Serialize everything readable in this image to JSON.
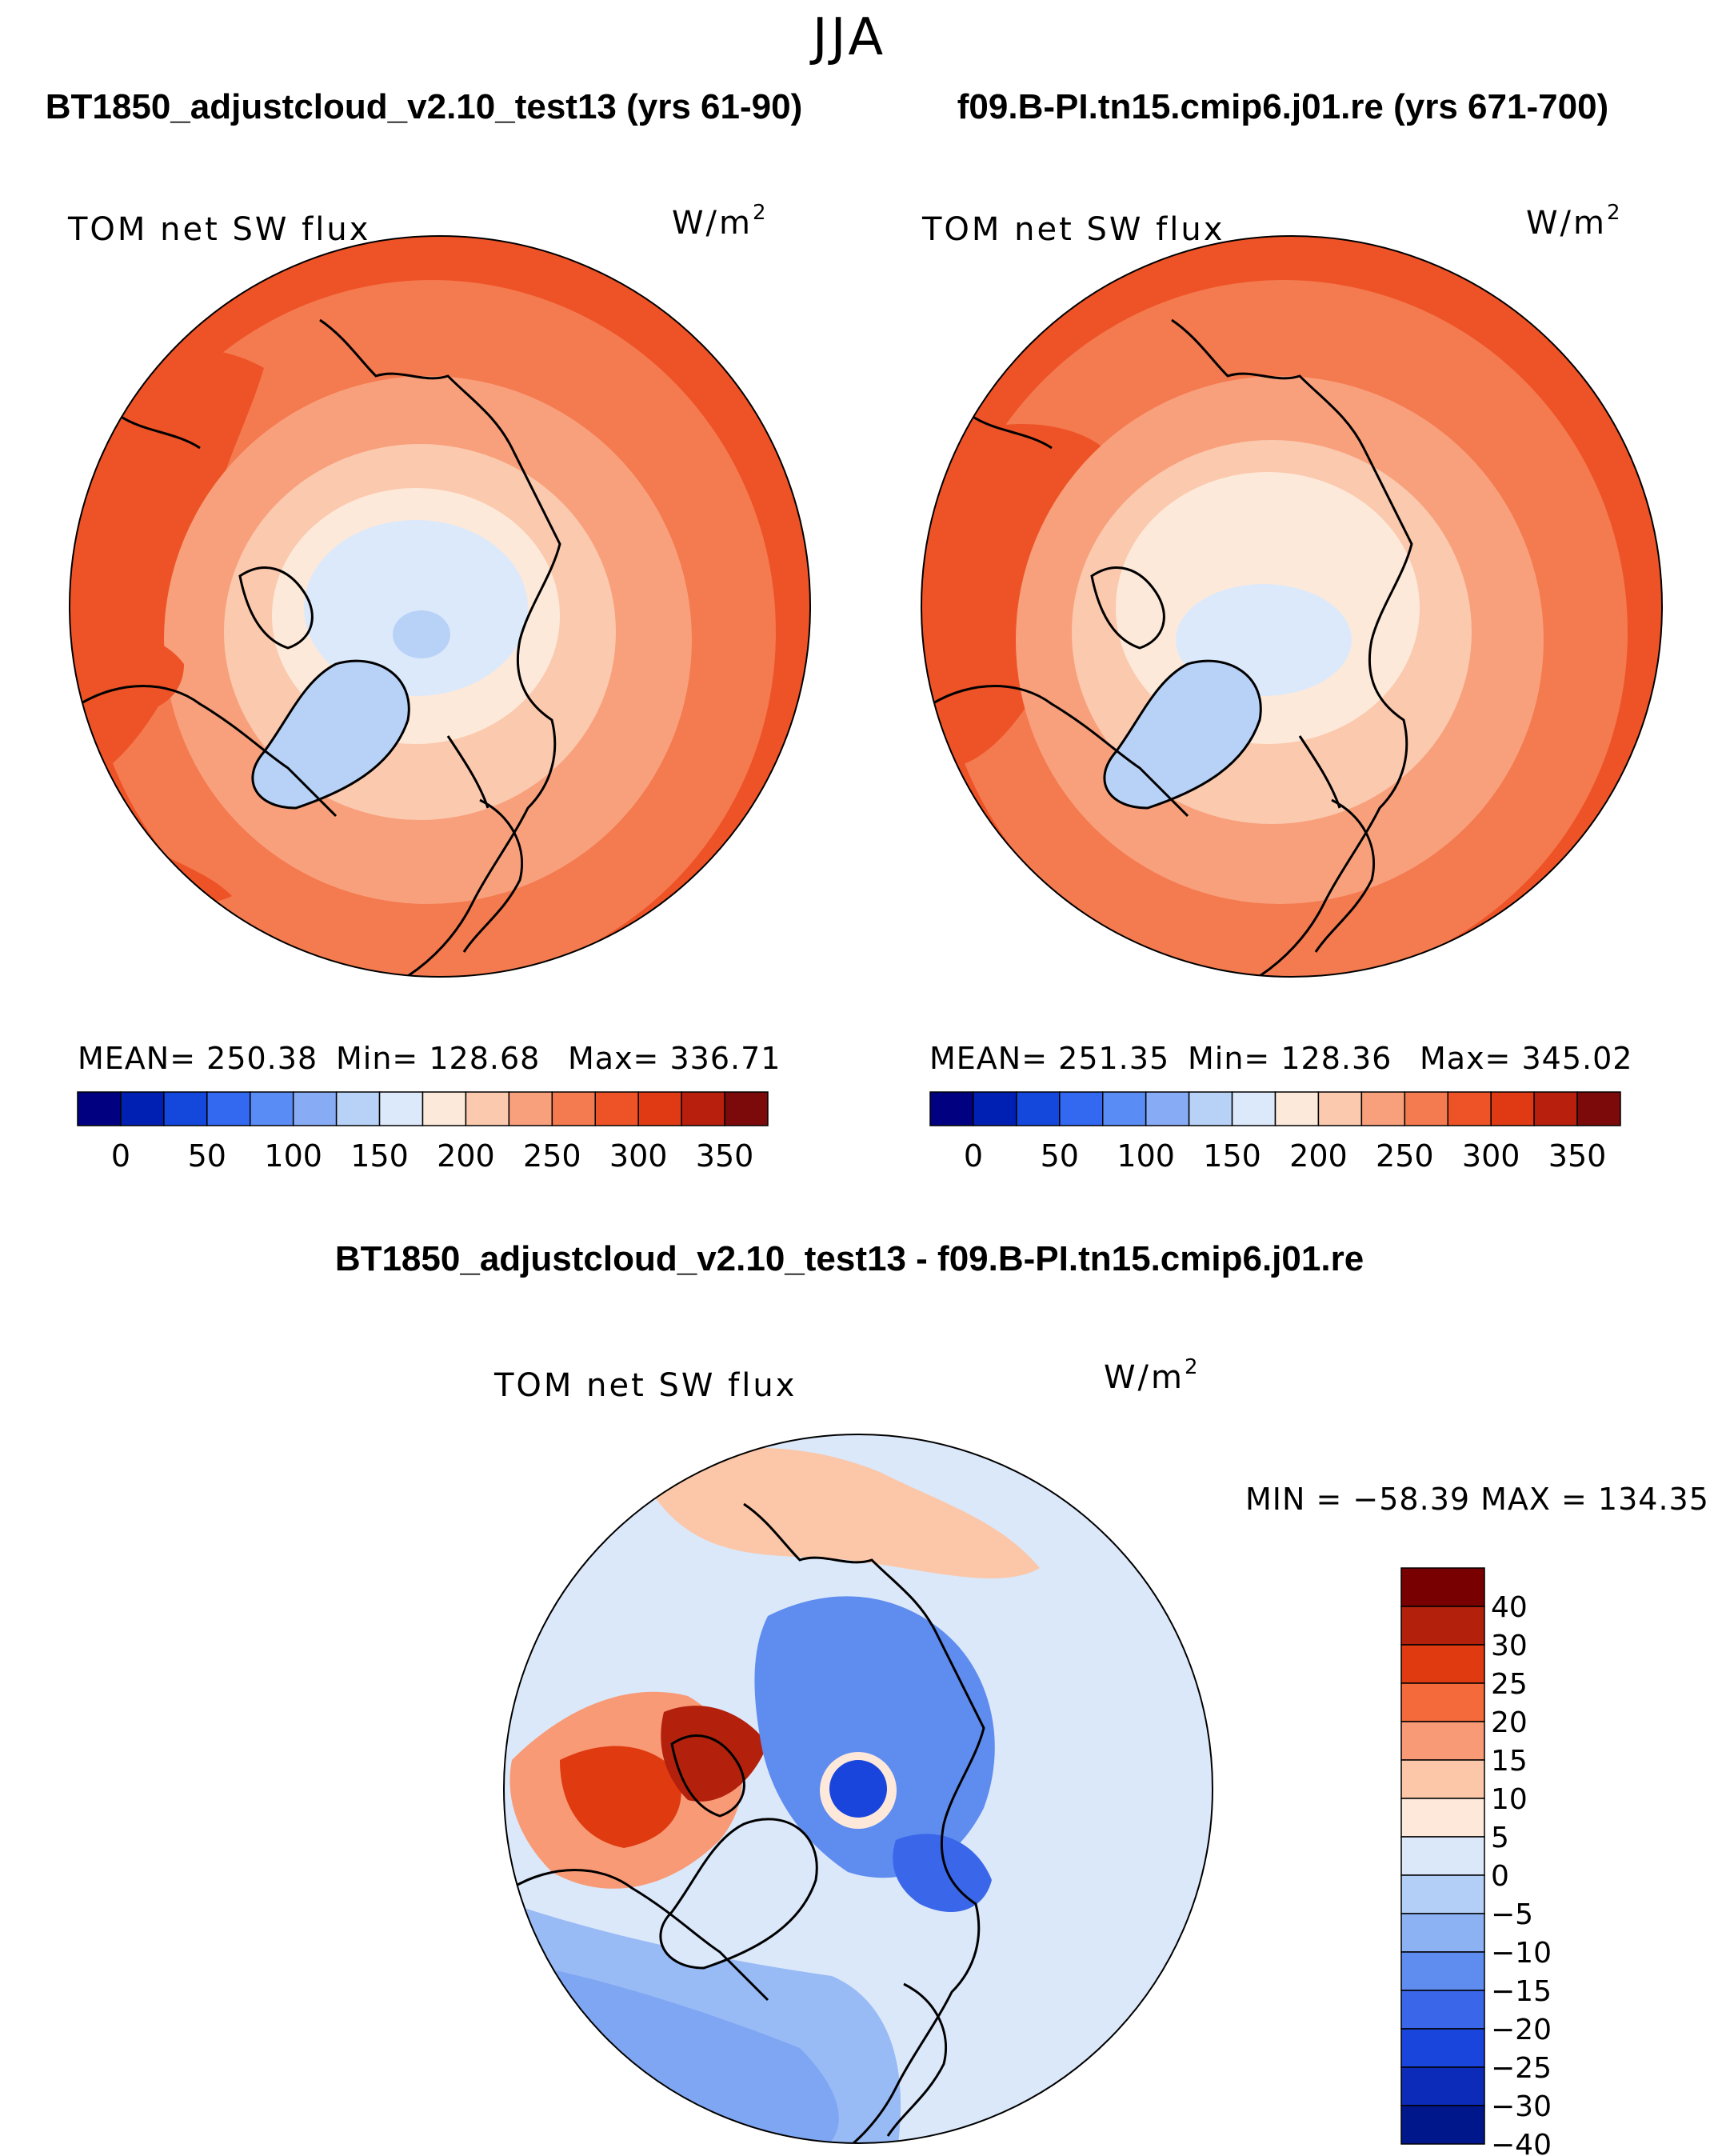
{
  "figure": {
    "season": "JJA"
  },
  "chart_data": [
    {
      "type": "heatmap",
      "panel": "left-top",
      "title": "BT1850_adjustcloud_v2.10_test13 (yrs 61-90)",
      "subtitle": "TOM net SW flux",
      "units": "W/m",
      "units_exp": "2",
      "projection": "north polar stereographic",
      "stats": {
        "mean_label": "MEAN=",
        "mean": "250.38",
        "min_label": "Min=",
        "min": "128.68",
        "max_label": "Max=",
        "max": "336.71"
      },
      "colorbar": {
        "orientation": "horizontal",
        "colors": [
          "#000080",
          "#0020b4",
          "#1447dc",
          "#3368f0",
          "#5a8cf5",
          "#87acf5",
          "#b8d2f7",
          "#dce9fb",
          "#fde9d9",
          "#fbc9ae",
          "#f8a07c",
          "#f47a4f",
          "#ee5327",
          "#df3a14",
          "#b8200d",
          "#7d0a0a"
        ],
        "tick_labels": [
          "0",
          "50",
          "100",
          "150",
          "200",
          "250",
          "300",
          "350"
        ]
      }
    },
    {
      "type": "heatmap",
      "panel": "right-top",
      "title": "f09.B-PI.tn15.cmip6.j01.re (yrs 671-700)",
      "subtitle": "TOM net SW flux",
      "units": "W/m",
      "units_exp": "2",
      "projection": "north polar stereographic",
      "stats": {
        "mean_label": "MEAN=",
        "mean": "251.35",
        "min_label": "Min=",
        "min": "128.36",
        "max_label": "Max=",
        "max": "345.02"
      },
      "colorbar": {
        "orientation": "horizontal",
        "colors": [
          "#000080",
          "#0020b4",
          "#1447dc",
          "#3368f0",
          "#5a8cf5",
          "#87acf5",
          "#b8d2f7",
          "#dce9fb",
          "#fde9d9",
          "#fbc9ae",
          "#f8a07c",
          "#f47a4f",
          "#ee5327",
          "#df3a14",
          "#b8200d",
          "#7d0a0a"
        ],
        "tick_labels": [
          "0",
          "50",
          "100",
          "150",
          "200",
          "250",
          "300",
          "350"
        ]
      }
    },
    {
      "type": "heatmap",
      "panel": "bottom-difference",
      "title": "BT1850_adjustcloud_v2.10_test13 - f09.B-PI.tn15.cmip6.j01.re",
      "subtitle": "TOM net SW flux",
      "units": "W/m",
      "units_exp": "2",
      "projection": "north polar stereographic",
      "stats_line": "MIN = −58.39  MAX = 134.35",
      "colorbar": {
        "orientation": "vertical",
        "colors": [
          "#780000",
          "#b3200c",
          "#e03a10",
          "#f56a3a",
          "#f89a76",
          "#fbc7a8",
          "#fde8da",
          "#dbe8fa",
          "#b3cff7",
          "#8cb2f3",
          "#5f8cef",
          "#3a67ea",
          "#1a45dc",
          "#0b2bb8",
          "#00178c"
        ],
        "tick_labels": [
          "40",
          "30",
          "25",
          "20",
          "15",
          "10",
          "5",
          "0",
          "−5",
          "−10",
          "−15",
          "−20",
          "−25",
          "−30",
          "−40"
        ]
      }
    }
  ]
}
